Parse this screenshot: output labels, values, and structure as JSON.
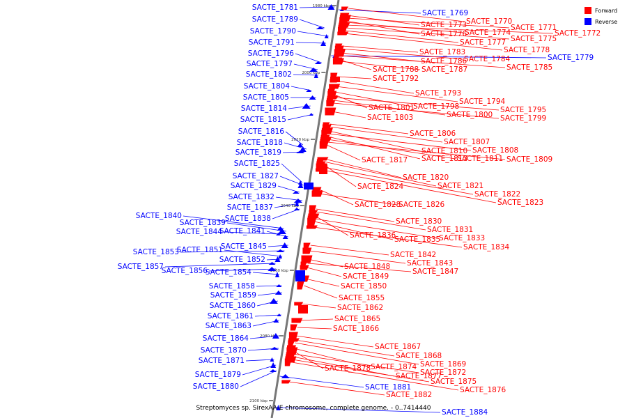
{
  "caption": "Streptomyces sp. SirexAA-E chromosome, complete genome. - 0..7414440",
  "colors": {
    "forward": "#ff0000",
    "reverse": "#0000ff",
    "axis": "#777777"
  },
  "legend": [
    {
      "label": "Forward",
      "color": "#ff0000"
    },
    {
      "label": "Reverse",
      "color": "#0000ff"
    }
  ],
  "ticks": [
    "1980 kbp",
    "2000 kbp",
    "2020 kbp",
    "2040 kbp",
    "2060 kbp",
    "2080 kbp",
    "2100 kbp"
  ],
  "reverse_genes": [
    "SACTE_1769",
    "SACTE_1779",
    "SACTE_1781",
    "SACTE_1789",
    "SACTE_1790",
    "SACTE_1791",
    "SACTE_1796",
    "SACTE_1797",
    "SACTE_1802",
    "SACTE_1804",
    "SACTE_1805",
    "SACTE_1814",
    "SACTE_1815",
    "SACTE_1816",
    "SACTE_1818",
    "SACTE_1819",
    "SACTE_1825",
    "SACTE_1827",
    "SACTE_1829",
    "SACTE_1832",
    "SACTE_1837",
    "SACTE_1838",
    "SACTE_1840",
    "SACTE_1839",
    "SACTE_1844",
    "SACTE_1841",
    "SACTE_1845",
    "SACTE_1853",
    "SACTE_1851",
    "SACTE_1852",
    "SACTE_1857",
    "SACTE_1856",
    "SACTE_1854",
    "SACTE_1858",
    "SACTE_1859",
    "SACTE_1860",
    "SACTE_1861",
    "SACTE_1863",
    "SACTE_1864",
    "SACTE_1870",
    "SACTE_1871",
    "SACTE_1879",
    "SACTE_1880",
    "SACTE_1881",
    "SACTE_1884"
  ],
  "forward_genes": [
    "SACTE_1770",
    "SACTE_1773",
    "SACTE_1771",
    "SACTE_1776",
    "SACTE_1774",
    "SACTE_1772",
    "SACTE_1775",
    "SACTE_1777",
    "SACTE_1778",
    "SACTE_1783",
    "SACTE_1784",
    "SACTE_1786",
    "SACTE_1785",
    "SACTE_1788",
    "SACTE_1787",
    "SACTE_1792",
    "SACTE_1793",
    "SACTE_1794",
    "SACTE_1798",
    "SACTE_1801",
    "SACTE_1795",
    "SACTE_1800",
    "SACTE_1799",
    "SACTE_1803",
    "SACTE_1806",
    "SACTE_1807",
    "SACTE_1810",
    "SACTE_1808",
    "SACTE_1813",
    "SACTE_1811",
    "SACTE_1809",
    "SACTE_1817",
    "SACTE_1820",
    "SACTE_1821",
    "SACTE_1824",
    "SACTE_1822",
    "SACTE_1823",
    "SACTE_1828",
    "SACTE_1826",
    "SACTE_1830",
    "SACTE_1831",
    "SACTE_1836",
    "SACTE_1833",
    "SACTE_1835",
    "SACTE_1834",
    "SACTE_1842",
    "SACTE_1843",
    "SACTE_1848",
    "SACTE_1847",
    "SACTE_1849",
    "SACTE_1850",
    "SACTE_1855",
    "SACTE_1862",
    "SACTE_1865",
    "SACTE_1866",
    "SACTE_1867",
    "SACTE_1868",
    "SACTE_1869",
    "SACTE_1874",
    "SACTE_1878",
    "SACTE_1872",
    "SACTE_1877",
    "SACTE_1875",
    "SACTE_1876",
    "SACTE_1882"
  ]
}
